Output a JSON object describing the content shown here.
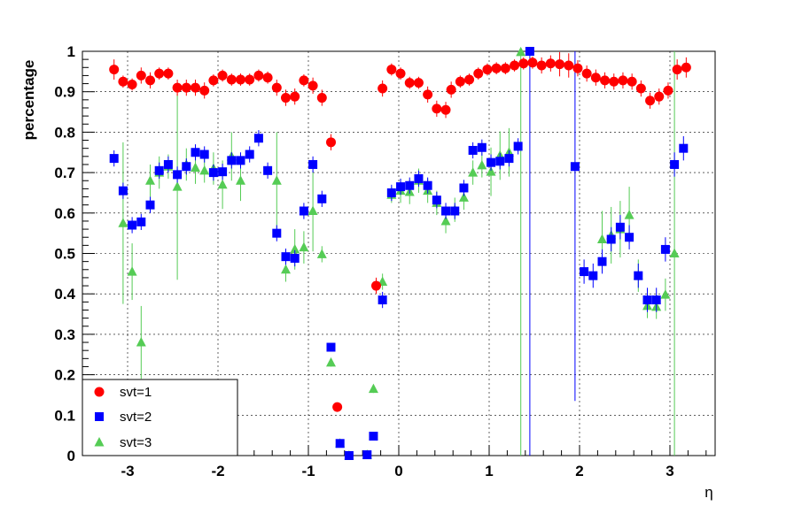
{
  "chart_data": {
    "type": "scatter",
    "xlabel": "η",
    "ylabel": "percentage",
    "xlim": [
      -3.5,
      3.5
    ],
    "ylim": [
      0,
      1
    ],
    "grid": true,
    "legend_position": "bottom-left",
    "x_ticks": [
      -3,
      -2,
      -1,
      0,
      1,
      2,
      3
    ],
    "x_tick_labels": [
      "-3",
      "-2",
      "-1",
      "0",
      "1",
      "2",
      "3"
    ],
    "y_ticks": [
      0,
      0.1,
      0.2,
      0.3,
      0.4,
      0.5,
      0.6,
      0.7,
      0.8,
      0.9,
      1
    ],
    "y_tick_labels": [
      "0",
      "0.1",
      "0.2",
      "0.3",
      "0.4",
      "0.5",
      "0.6",
      "0.7",
      "0.8",
      "0.9",
      "1"
    ],
    "series": [
      {
        "name": "svt=1",
        "marker": "circle",
        "color": "#ff0000",
        "points": [
          {
            "x": -3.15,
            "y": 0.955,
            "err": 0.025
          },
          {
            "x": -3.05,
            "y": 0.925,
            "err": 0.015
          },
          {
            "x": -2.95,
            "y": 0.918,
            "err": 0.015
          },
          {
            "x": -2.85,
            "y": 0.94,
            "err": 0.02
          },
          {
            "x": -2.75,
            "y": 0.928,
            "err": 0.02
          },
          {
            "x": -2.65,
            "y": 0.945,
            "err": 0.015
          },
          {
            "x": -2.55,
            "y": 0.945,
            "err": 0.015
          },
          {
            "x": -2.45,
            "y": 0.91,
            "err": 0.02
          },
          {
            "x": -2.35,
            "y": 0.91,
            "err": 0.02
          },
          {
            "x": -2.25,
            "y": 0.91,
            "err": 0.02
          },
          {
            "x": -2.15,
            "y": 0.903,
            "err": 0.02
          },
          {
            "x": -2.05,
            "y": 0.928,
            "err": 0.015
          },
          {
            "x": -1.95,
            "y": 0.94,
            "err": 0.015
          },
          {
            "x": -1.85,
            "y": 0.93,
            "err": 0.015
          },
          {
            "x": -1.75,
            "y": 0.93,
            "err": 0.015
          },
          {
            "x": -1.65,
            "y": 0.93,
            "err": 0.015
          },
          {
            "x": -1.55,
            "y": 0.94,
            "err": 0.015
          },
          {
            "x": -1.45,
            "y": 0.935,
            "err": 0.015
          },
          {
            "x": -1.35,
            "y": 0.91,
            "err": 0.02
          },
          {
            "x": -1.25,
            "y": 0.885,
            "err": 0.02
          },
          {
            "x": -1.15,
            "y": 0.888,
            "err": 0.02
          },
          {
            "x": -1.05,
            "y": 0.928,
            "err": 0.015
          },
          {
            "x": -0.95,
            "y": 0.915,
            "err": 0.02
          },
          {
            "x": -0.85,
            "y": 0.885,
            "err": 0.02
          },
          {
            "x": -0.75,
            "y": 0.775,
            "err": 0.02
          },
          {
            "x": -0.68,
            "y": 0.12,
            "err": 0.01
          },
          {
            "x": -0.25,
            "y": 0.42,
            "err": 0.02
          },
          {
            "x": -0.18,
            "y": 0.908,
            "err": 0.02
          },
          {
            "x": -0.08,
            "y": 0.955,
            "err": 0.015
          },
          {
            "x": 0.02,
            "y": 0.945,
            "err": 0.015
          },
          {
            "x": 0.12,
            "y": 0.922,
            "err": 0.015
          },
          {
            "x": 0.22,
            "y": 0.922,
            "err": 0.015
          },
          {
            "x": 0.32,
            "y": 0.893,
            "err": 0.02
          },
          {
            "x": 0.42,
            "y": 0.858,
            "err": 0.02
          },
          {
            "x": 0.52,
            "y": 0.855,
            "err": 0.02
          },
          {
            "x": 0.58,
            "y": 0.905,
            "err": 0.02
          },
          {
            "x": 0.68,
            "y": 0.925,
            "err": 0.015
          },
          {
            "x": 0.78,
            "y": 0.93,
            "err": 0.015
          },
          {
            "x": 0.88,
            "y": 0.945,
            "err": 0.015
          },
          {
            "x": 0.98,
            "y": 0.955,
            "err": 0.015
          },
          {
            "x": 1.08,
            "y": 0.958,
            "err": 0.015
          },
          {
            "x": 1.18,
            "y": 0.958,
            "err": 0.015
          },
          {
            "x": 1.28,
            "y": 0.965,
            "err": 0.015
          },
          {
            "x": 1.38,
            "y": 0.97,
            "err": 0.015
          },
          {
            "x": 1.48,
            "y": 0.972,
            "err": 0.015
          },
          {
            "x": 1.58,
            "y": 0.965,
            "err": 0.02
          },
          {
            "x": 1.68,
            "y": 0.97,
            "err": 0.02
          },
          {
            "x": 1.78,
            "y": 0.968,
            "err": 0.03
          },
          {
            "x": 1.88,
            "y": 0.965,
            "err": 0.03
          },
          {
            "x": 1.98,
            "y": 0.958,
            "err": 0.02
          },
          {
            "x": 2.08,
            "y": 0.945,
            "err": 0.02
          },
          {
            "x": 2.18,
            "y": 0.935,
            "err": 0.02
          },
          {
            "x": 2.28,
            "y": 0.928,
            "err": 0.02
          },
          {
            "x": 2.38,
            "y": 0.925,
            "err": 0.02
          },
          {
            "x": 2.48,
            "y": 0.928,
            "err": 0.02
          },
          {
            "x": 2.58,
            "y": 0.925,
            "err": 0.02
          },
          {
            "x": 2.68,
            "y": 0.908,
            "err": 0.02
          },
          {
            "x": 2.78,
            "y": 0.878,
            "err": 0.02
          },
          {
            "x": 2.88,
            "y": 0.888,
            "err": 0.02
          },
          {
            "x": 2.98,
            "y": 0.903,
            "err": 0.02
          },
          {
            "x": 3.08,
            "y": 0.955,
            "err": 0.025
          },
          {
            "x": 3.18,
            "y": 0.96,
            "err": 0.025
          }
        ]
      },
      {
        "name": "svt=2",
        "marker": "square",
        "color": "#0000ff",
        "points": [
          {
            "x": -3.15,
            "y": 0.735,
            "err": 0.02
          },
          {
            "x": -3.05,
            "y": 0.655,
            "err": 0.02
          },
          {
            "x": -2.95,
            "y": 0.57,
            "err": 0.02
          },
          {
            "x": -2.85,
            "y": 0.578,
            "err": 0.02
          },
          {
            "x": -2.75,
            "y": 0.62,
            "err": 0.02
          },
          {
            "x": -2.65,
            "y": 0.705,
            "err": 0.02
          },
          {
            "x": -2.55,
            "y": 0.72,
            "err": 0.02
          },
          {
            "x": -2.45,
            "y": 0.695,
            "err": 0.02
          },
          {
            "x": -2.35,
            "y": 0.715,
            "err": 0.02
          },
          {
            "x": -2.25,
            "y": 0.75,
            "err": 0.02
          },
          {
            "x": -2.15,
            "y": 0.745,
            "err": 0.02
          },
          {
            "x": -2.05,
            "y": 0.7,
            "err": 0.02
          },
          {
            "x": -1.95,
            "y": 0.702,
            "err": 0.02
          },
          {
            "x": -1.85,
            "y": 0.73,
            "err": 0.02
          },
          {
            "x": -1.75,
            "y": 0.73,
            "err": 0.02
          },
          {
            "x": -1.65,
            "y": 0.745,
            "err": 0.02
          },
          {
            "x": -1.55,
            "y": 0.785,
            "err": 0.02
          },
          {
            "x": -1.45,
            "y": 0.705,
            "err": 0.02
          },
          {
            "x": -1.35,
            "y": 0.55,
            "err": 0.02
          },
          {
            "x": -1.25,
            "y": 0.492,
            "err": 0.02
          },
          {
            "x": -1.15,
            "y": 0.488,
            "err": 0.02
          },
          {
            "x": -1.05,
            "y": 0.605,
            "err": 0.02
          },
          {
            "x": -0.95,
            "y": 0.72,
            "err": 0.02
          },
          {
            "x": -0.85,
            "y": 0.635,
            "err": 0.02
          },
          {
            "x": -0.75,
            "y": 0.268,
            "err": 0.01
          },
          {
            "x": -0.65,
            "y": 0.03,
            "err": 0.005
          },
          {
            "x": -0.55,
            "y": 0.0,
            "err": 0.005
          },
          {
            "x": -0.35,
            "y": 0.002,
            "err": 0.005
          },
          {
            "x": -0.28,
            "y": 0.048,
            "err": 0.01
          },
          {
            "x": -0.18,
            "y": 0.385,
            "err": 0.02
          },
          {
            "x": -0.08,
            "y": 0.65,
            "err": 0.02
          },
          {
            "x": 0.02,
            "y": 0.665,
            "err": 0.02
          },
          {
            "x": 0.12,
            "y": 0.668,
            "err": 0.02
          },
          {
            "x": 0.22,
            "y": 0.685,
            "err": 0.02
          },
          {
            "x": 0.32,
            "y": 0.668,
            "err": 0.02
          },
          {
            "x": 0.42,
            "y": 0.632,
            "err": 0.02
          },
          {
            "x": 0.52,
            "y": 0.605,
            "err": 0.02
          },
          {
            "x": 0.62,
            "y": 0.605,
            "err": 0.02
          },
          {
            "x": 0.72,
            "y": 0.662,
            "err": 0.02
          },
          {
            "x": 0.82,
            "y": 0.755,
            "err": 0.02
          },
          {
            "x": 0.92,
            "y": 0.762,
            "err": 0.02
          },
          {
            "x": 1.02,
            "y": 0.725,
            "err": 0.02
          },
          {
            "x": 1.12,
            "y": 0.728,
            "err": 0.02
          },
          {
            "x": 1.22,
            "y": 0.735,
            "err": 0.02
          },
          {
            "x": 1.32,
            "y": 0.765,
            "err": 0.02
          },
          {
            "x": 1.45,
            "y": 1.0,
            "err": 1.0
          },
          {
            "x": 1.95,
            "y": 0.715,
            "err": 0.58
          },
          {
            "x": 2.05,
            "y": 0.455,
            "err": 0.03
          },
          {
            "x": 2.15,
            "y": 0.445,
            "err": 0.03
          },
          {
            "x": 2.25,
            "y": 0.48,
            "err": 0.03
          },
          {
            "x": 2.35,
            "y": 0.535,
            "err": 0.03
          },
          {
            "x": 2.45,
            "y": 0.565,
            "err": 0.03
          },
          {
            "x": 2.55,
            "y": 0.54,
            "err": 0.03
          },
          {
            "x": 2.65,
            "y": 0.445,
            "err": 0.03
          },
          {
            "x": 2.75,
            "y": 0.385,
            "err": 0.03
          },
          {
            "x": 2.85,
            "y": 0.385,
            "err": 0.03
          },
          {
            "x": 2.95,
            "y": 0.51,
            "err": 0.03
          },
          {
            "x": 3.05,
            "y": 0.72,
            "err": 0.03
          },
          {
            "x": 3.15,
            "y": 0.76,
            "err": 0.03
          }
        ]
      },
      {
        "name": "svt=3",
        "marker": "triangle",
        "color": "#55cc55",
        "points": [
          {
            "x": -3.05,
            "y": 0.575,
            "err": 0.2
          },
          {
            "x": -2.95,
            "y": 0.455,
            "err": 0.07
          },
          {
            "x": -2.85,
            "y": 0.28,
            "err": 0.09
          },
          {
            "x": -2.75,
            "y": 0.68,
            "err": 0.04
          },
          {
            "x": -2.65,
            "y": 0.7,
            "err": 0.04
          },
          {
            "x": -2.55,
            "y": 0.715,
            "err": 0.03
          },
          {
            "x": -2.45,
            "y": 0.665,
            "err": 0.23
          },
          {
            "x": -2.35,
            "y": 0.72,
            "err": 0.04
          },
          {
            "x": -2.25,
            "y": 0.712,
            "err": 0.04
          },
          {
            "x": -2.15,
            "y": 0.705,
            "err": 0.03
          },
          {
            "x": -2.05,
            "y": 0.71,
            "err": 0.04
          },
          {
            "x": -1.95,
            "y": 0.67,
            "err": 0.06
          },
          {
            "x": -1.85,
            "y": 0.74,
            "err": 0.06
          },
          {
            "x": -1.75,
            "y": 0.68,
            "err": 0.05
          },
          {
            "x": -1.35,
            "y": 0.68,
            "err": 0.12
          },
          {
            "x": -1.25,
            "y": 0.46,
            "err": 0.03
          },
          {
            "x": -1.15,
            "y": 0.51,
            "err": 0.05
          },
          {
            "x": -1.05,
            "y": 0.515,
            "err": 0.04
          },
          {
            "x": -0.95,
            "y": 0.605,
            "err": 0.1
          },
          {
            "x": -0.85,
            "y": 0.498,
            "err": 0.02
          },
          {
            "x": -0.75,
            "y": 0.23,
            "err": 0.01
          },
          {
            "x": -0.65,
            "y": 0.03,
            "err": 0.005
          },
          {
            "x": -0.55,
            "y": 0.0,
            "err": 0.005
          },
          {
            "x": -0.35,
            "y": 0.002,
            "err": 0.005
          },
          {
            "x": -0.28,
            "y": 0.165,
            "err": 0.01
          },
          {
            "x": -0.18,
            "y": 0.43,
            "err": 0.02
          },
          {
            "x": -0.08,
            "y": 0.645,
            "err": 0.02
          },
          {
            "x": 0.02,
            "y": 0.655,
            "err": 0.03
          },
          {
            "x": 0.12,
            "y": 0.652,
            "err": 0.03
          },
          {
            "x": 0.22,
            "y": 0.68,
            "err": 0.03
          },
          {
            "x": 0.32,
            "y": 0.655,
            "err": 0.03
          },
          {
            "x": 0.42,
            "y": 0.625,
            "err": 0.03
          },
          {
            "x": 0.52,
            "y": 0.58,
            "err": 0.03
          },
          {
            "x": 0.62,
            "y": 0.608,
            "err": 0.03
          },
          {
            "x": 0.72,
            "y": 0.638,
            "err": 0.03
          },
          {
            "x": 0.82,
            "y": 0.7,
            "err": 0.03
          },
          {
            "x": 0.92,
            "y": 0.718,
            "err": 0.03
          },
          {
            "x": 1.02,
            "y": 0.702,
            "err": 0.06
          },
          {
            "x": 1.12,
            "y": 0.742,
            "err": 0.06
          },
          {
            "x": 1.22,
            "y": 0.75,
            "err": 0.06
          },
          {
            "x": 1.35,
            "y": 0.998,
            "err": 1.0
          },
          {
            "x": 2.25,
            "y": 0.535,
            "err": 0.07
          },
          {
            "x": 2.35,
            "y": 0.545,
            "err": 0.07
          },
          {
            "x": 2.45,
            "y": 0.56,
            "err": 0.07
          },
          {
            "x": 2.55,
            "y": 0.595,
            "err": 0.07
          },
          {
            "x": 2.65,
            "y": 0.445,
            "err": 0.04
          },
          {
            "x": 2.75,
            "y": 0.37,
            "err": 0.03
          },
          {
            "x": 2.85,
            "y": 0.368,
            "err": 0.03
          },
          {
            "x": 2.95,
            "y": 0.398,
            "err": 0.04
          },
          {
            "x": 3.05,
            "y": 0.5,
            "err": 0.5
          }
        ]
      }
    ]
  }
}
